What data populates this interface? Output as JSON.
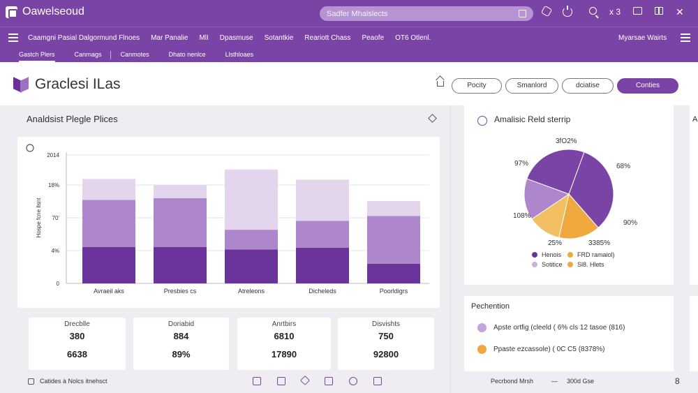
{
  "app": {
    "name": "Oawelseoud"
  },
  "search": {
    "placeholder": "Sadfer Mhalslects"
  },
  "topbar": {
    "counter_label": "x 3"
  },
  "nav": {
    "items": [
      "Caamgni Pasial Dalgormund Flnoes",
      "Mar Panalie",
      "MlI",
      "Dpasmuse",
      "Sotantkie",
      "Reariott Chass",
      "Peaofe",
      "OT6 Otlenl."
    ],
    "right_link": "Myarsae Wairts"
  },
  "subnav": {
    "items": [
      "Gastch Plers",
      "Canrnags",
      "Canmotes",
      "Dhato nenlce",
      "Llsthloaes"
    ]
  },
  "page": {
    "title": "Graclesi ILas"
  },
  "actions": {
    "btn1": "Pocity",
    "btn2": "Smanlord",
    "btn3": "dciatise",
    "btn_primary": "Conties"
  },
  "main": {
    "section_title": "Analdsist Plegle Plices"
  },
  "chart_data": {
    "type": "bar",
    "stacked": true,
    "categories": [
      "Avraeil aks",
      "Presbies cs",
      "Atreleons",
      "Dicheleds",
      "Poorldigrs"
    ],
    "series": [
      {
        "name": "",
        "color": "#6b349b",
        "values": [
          61,
          61,
          57,
          60,
          33
        ]
      },
      {
        "name": "",
        "color": "#ad86cb",
        "values": [
          79,
          82,
          33,
          45,
          80
        ]
      },
      {
        "name": "",
        "color": "#e2d5ec",
        "values": [
          35,
          22,
          101,
          69,
          25
        ]
      }
    ],
    "y_ticks": [
      "0",
      "4%",
      "70'",
      "18%",
      "2014"
    ],
    "ylabel": "Hospe fcne llsnt",
    "ylim": [
      0,
      220
    ],
    "grid": true
  },
  "stats": [
    {
      "label": "Drecblle",
      "v1": "380",
      "v2": "6638"
    },
    {
      "label": "Doriabid",
      "v1": "884",
      "v2": "89%"
    },
    {
      "label": "Anrtbirs",
      "v1": "6810",
      "v2": "17890"
    },
    {
      "label": "Disvishts",
      "v1": "750",
      "v2": "92800"
    }
  ],
  "pie": {
    "title": "Amalisic Reld sterrip",
    "slices": [
      {
        "label": "3fO2%",
        "value": 33,
        "color": "#7a44a6"
      },
      {
        "label": "68%",
        "value": 15,
        "color": "#efa93e"
      },
      {
        "label": "90%",
        "value": 12,
        "color": "#f2bf63"
      },
      {
        "label": "3385%",
        "value": 15,
        "color": "#ad86cb"
      },
      {
        "label": "97%",
        "value": 25,
        "color": "#7a44a6"
      }
    ],
    "outer_labels": [
      "3fO2%",
      "68%",
      "90%",
      "3385%",
      "25%",
      "108%",
      "97%"
    ],
    "legend": [
      {
        "label": "Henois",
        "color": "#6b349b"
      },
      {
        "label": "FRD ramaiol)",
        "color": "#efa93e"
      },
      {
        "label": "Sotitice",
        "color": "#c9b3dc"
      },
      {
        "label": "Sl8. Hlets",
        "color": "#efa93e"
      }
    ]
  },
  "perf": {
    "title": "Pechention",
    "rows": [
      {
        "text": "Apste ortfig (cleeld ( 6% cls 12 tasoe (816)",
        "color": "#c2a6da"
      },
      {
        "text": "Ppaste ezcassole) ( 0C C5 (8378%)",
        "color": "#efa93e"
      }
    ]
  },
  "side": {
    "letter": "A"
  },
  "footer": {
    "left_text": "Catides à Nolcs itnehsct",
    "right_text": "Pecrbond Mrsh",
    "dash": "—",
    "count": "300d Gse",
    "page_num": "8"
  },
  "colors": {
    "brand": "#7a44a6",
    "accent_orange": "#efa93e"
  }
}
